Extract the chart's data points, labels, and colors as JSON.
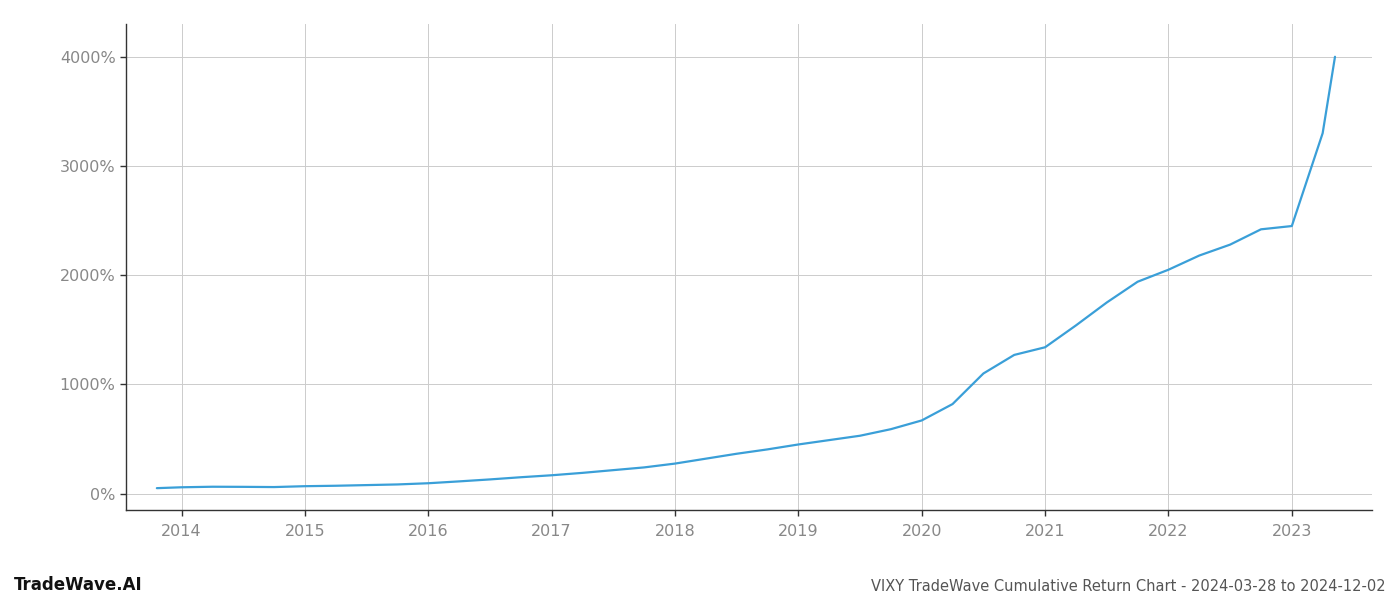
{
  "title": "VIXY TradeWave Cumulative Return Chart - 2024-03-28 to 2024-12-02",
  "watermark": "TradeWave.AI",
  "line_color": "#3a9fd8",
  "background_color": "#ffffff",
  "grid_color": "#cccccc",
  "x_years": [
    2014,
    2015,
    2016,
    2017,
    2018,
    2019,
    2020,
    2021,
    2022,
    2023
  ],
  "x_min": 2013.55,
  "x_max": 2023.65,
  "y_min": -150,
  "y_max": 4300,
  "y_ticks": [
    0,
    1000,
    2000,
    3000,
    4000
  ],
  "curve_x": [
    2013.8,
    2014.0,
    2014.25,
    2014.5,
    2014.75,
    2015.0,
    2015.25,
    2015.5,
    2015.75,
    2016.0,
    2016.25,
    2016.5,
    2016.75,
    2017.0,
    2017.25,
    2017.5,
    2017.75,
    2018.0,
    2018.25,
    2018.5,
    2018.75,
    2019.0,
    2019.25,
    2019.5,
    2019.75,
    2020.0,
    2020.25,
    2020.5,
    2020.75,
    2021.0,
    2021.25,
    2021.5,
    2021.75,
    2022.0,
    2022.25,
    2022.5,
    2022.75,
    2023.0,
    2023.25,
    2023.35
  ],
  "curve_y": [
    50,
    58,
    63,
    62,
    60,
    68,
    72,
    78,
    84,
    95,
    112,
    130,
    150,
    168,
    190,
    215,
    240,
    275,
    320,
    365,
    405,
    450,
    490,
    530,
    590,
    670,
    820,
    1100,
    1270,
    1340,
    1540,
    1750,
    1940,
    2050,
    2180,
    2280,
    2420,
    2450,
    3300,
    4000
  ],
  "title_fontsize": 10.5,
  "watermark_fontsize": 12,
  "tick_fontsize": 11.5
}
